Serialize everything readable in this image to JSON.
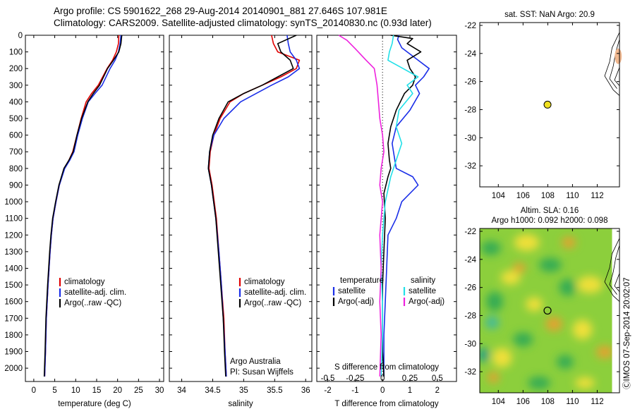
{
  "header": {
    "line1": "Argo profile: CS 5901622_268 29-Aug-2014 20140901_881 27.646S 107.981E",
    "line2": "Climatology: CARS2009. Satellite-adjusted climatology: synTS_20140830.nc (0.93d later)"
  },
  "side_text": "ⒸIMOS 07-Sep-2014 20:02:07",
  "colors": {
    "climatology": "#e00000",
    "satellite": "#1a2ee8",
    "argo": "#000000",
    "sat_salinity": "#22e0e8",
    "argo_salinity": "#ee22dd",
    "float_marker": "#f0e020"
  },
  "chart_data": [
    {
      "id": "temperature",
      "type": "line",
      "xlabel": "temperature (deg C)",
      "xlim": [
        -2,
        31
      ],
      "xticks": [
        0,
        5,
        10,
        15,
        20,
        25,
        30
      ],
      "ylim": [
        2080,
        0
      ],
      "yticks": [
        0,
        100,
        200,
        300,
        400,
        500,
        600,
        700,
        800,
        900,
        1000,
        1100,
        1200,
        1300,
        1400,
        1500,
        1600,
        1700,
        1800,
        1900,
        2000
      ],
      "legend": [
        "climatology",
        "satellite-adj. clim.",
        "Argo(..raw -QC)"
      ],
      "series": [
        {
          "name": "climatology",
          "color": "#e00000",
          "x": [
            20.3,
            20.2,
            19.7,
            18.8,
            17.5,
            15.4,
            13.8,
            12.5,
            11.3,
            10.3,
            9.3,
            8.4,
            7.3,
            6.1,
            5.3,
            4.6,
            4.2,
            3.9,
            3.4,
            3.0,
            2.8,
            2.6
          ],
          "y": [
            0,
            50,
            100,
            150,
            200,
            300,
            350,
            400,
            500,
            600,
            700,
            750,
            800,
            900,
            1000,
            1100,
            1200,
            1300,
            1500,
            1700,
            1900,
            2050
          ]
        },
        {
          "name": "satellite-adj. clim.",
          "color": "#1a2ee8",
          "x": [
            20.8,
            20.6,
            20.2,
            19.4,
            18.2,
            16.3,
            14.6,
            13.0,
            11.6,
            10.5,
            9.6,
            8.6,
            7.4,
            6.1,
            5.3,
            4.6,
            4.2,
            3.9,
            3.4,
            3.0,
            2.8,
            2.6
          ],
          "y": [
            0,
            50,
            100,
            150,
            200,
            300,
            350,
            400,
            500,
            600,
            700,
            750,
            800,
            900,
            1000,
            1100,
            1200,
            1300,
            1500,
            1700,
            1900,
            2050
          ]
        },
        {
          "name": "Argo(..raw -QC)",
          "color": "#000000",
          "x": [
            21.0,
            20.8,
            20.3,
            19.0,
            17.6,
            15.7,
            14.2,
            12.9,
            11.4,
            10.3,
            9.4,
            8.4,
            7.2,
            6.0,
            5.2,
            4.5,
            4.1,
            3.8,
            3.3,
            2.9,
            2.7,
            2.5
          ],
          "y": [
            0,
            50,
            100,
            150,
            200,
            300,
            350,
            400,
            500,
            600,
            700,
            750,
            800,
            900,
            1000,
            1100,
            1200,
            1300,
            1500,
            1700,
            1900,
            2050
          ]
        }
      ]
    },
    {
      "id": "salinity",
      "type": "line",
      "xlabel": "salinity",
      "xlim": [
        33.8,
        36.1
      ],
      "xticks": [
        34,
        34.5,
        35,
        35.5,
        36
      ],
      "ylim": [
        2080,
        0
      ],
      "legend": [
        "climatology",
        "satellite-adj. clim.",
        "Argo(..raw -QC)"
      ],
      "annotation": [
        "Argo Australia",
        "PI: Susan Wijffels"
      ],
      "series": [
        {
          "name": "climatology",
          "color": "#e00000",
          "x": [
            35.45,
            35.48,
            35.55,
            35.9,
            35.85,
            35.6,
            35.3,
            35.0,
            34.78,
            34.62,
            34.52,
            34.46,
            34.44,
            34.49,
            34.56,
            34.6,
            34.64,
            34.68,
            34.7,
            34.72
          ],
          "y": [
            0,
            50,
            100,
            150,
            200,
            250,
            300,
            350,
            400,
            500,
            600,
            700,
            800,
            900,
            1100,
            1300,
            1500,
            1700,
            1900,
            2050
          ]
        },
        {
          "name": "satellite-adj. clim.",
          "color": "#1a2ee8",
          "x": [
            35.7,
            35.72,
            35.75,
            35.85,
            35.9,
            35.72,
            35.45,
            35.2,
            34.95,
            34.68,
            34.52,
            34.45,
            34.43,
            34.48,
            34.55,
            34.6,
            34.64,
            34.67,
            34.7,
            34.72
          ],
          "y": [
            0,
            50,
            100,
            150,
            200,
            250,
            300,
            350,
            400,
            500,
            600,
            700,
            800,
            900,
            1100,
            1300,
            1500,
            1700,
            1900,
            2050
          ]
        },
        {
          "name": "Argo(..raw -QC)",
          "color": "#000000",
          "x": [
            35.85,
            35.55,
            35.6,
            35.75,
            35.8,
            35.55,
            35.3,
            35.0,
            34.75,
            34.6,
            34.5,
            34.45,
            34.43,
            34.48,
            34.55,
            34.59,
            34.63,
            34.67,
            34.69,
            34.71
          ],
          "y": [
            0,
            50,
            100,
            150,
            200,
            250,
            300,
            350,
            400,
            500,
            600,
            700,
            800,
            900,
            1100,
            1300,
            1500,
            1700,
            1900,
            2050
          ]
        }
      ]
    },
    {
      "id": "difference",
      "type": "line",
      "xlabel": "T difference from climatology",
      "xticks": [
        -2,
        -1,
        0,
        1,
        2
      ],
      "xlim": [
        -2.4,
        2.7
      ],
      "top_xlabel": "S difference from climatology",
      "top_xticks": [
        "-0.5",
        "-0.25",
        "0",
        "0.25",
        "0.5"
      ],
      "ylim": [
        2080,
        0
      ],
      "legend_temperature": [
        "temperature",
        "satellite",
        "Argo(-adj)"
      ],
      "legend_salinity": [
        "salinity",
        "satellite",
        "Argo(-adj)"
      ],
      "series": [
        {
          "name": "T satellite",
          "color": "#1a2ee8",
          "x": [
            0.6,
            0.55,
            0.7,
            1.3,
            1.7,
            1.5,
            1.2,
            1.35,
            1.0,
            0.5,
            0.35,
            0.45,
            0.5,
            1.1,
            1.3,
            0.7,
            0.5,
            0.2,
            0.15,
            0.1,
            0.05,
            0.05
          ],
          "y": [
            0,
            25,
            75,
            150,
            200,
            250,
            300,
            350,
            450,
            550,
            650,
            750,
            800,
            850,
            900,
            1000,
            1100,
            1200,
            1400,
            1600,
            1800,
            2050
          ]
        },
        {
          "name": "T Argo(-adj)",
          "color": "#000000",
          "x": [
            0.3,
            1.1,
            0.9,
            1.4,
            0.9,
            1.0,
            1.2,
            1.1,
            0.8,
            0.5,
            0.3,
            0.2,
            0.25,
            0.3,
            0.2,
            0.05,
            0.1,
            0.05,
            0.0,
            0.0,
            0.0,
            0.05
          ],
          "y": [
            0,
            20,
            50,
            100,
            150,
            200,
            250,
            300,
            350,
            450,
            550,
            650,
            750,
            800,
            850,
            950,
            1100,
            1300,
            1500,
            1700,
            1900,
            2050
          ]
        },
        {
          "name": "S satellite",
          "color": "#22e0e8",
          "x": [
            0.4,
            0.35,
            0.25,
            0.2,
            0.75,
            1.3,
            0.9,
            1.1,
            0.6,
            0.5,
            0.7,
            0.5,
            0.3,
            0.1,
            0.0,
            -0.05,
            0.0,
            0.0,
            -0.05
          ],
          "y": [
            0,
            50,
            100,
            150,
            200,
            250,
            300,
            350,
            450,
            550,
            650,
            750,
            850,
            1000,
            1200,
            1400,
            1600,
            1800,
            2050
          ]
        },
        {
          "name": "S Argo(-adj)",
          "color": "#ee22dd",
          "x": [
            -1.6,
            -1.3,
            -1.0,
            -0.6,
            -0.3,
            -0.2,
            -0.15,
            -0.1,
            0.0,
            0.05,
            -0.05,
            -0.1,
            0.0,
            -0.1,
            -0.05,
            -0.1,
            -0.05,
            -0.1
          ],
          "y": [
            0,
            30,
            80,
            150,
            200,
            300,
            400,
            500,
            600,
            700,
            800,
            900,
            1000,
            1200,
            1400,
            1600,
            1800,
            2050
          ]
        }
      ]
    },
    {
      "id": "sst_map",
      "type": "scatter",
      "title": "sat. SST: NaN Argo: 20.9",
      "xlim": [
        102.5,
        113.8
      ],
      "ylim": [
        -33.5,
        -21.8
      ],
      "xticks": [
        104,
        106,
        108,
        110,
        112
      ],
      "yticks": [
        -22,
        -24,
        -26,
        -28,
        -30,
        -32
      ],
      "point": {
        "lon": 107.981,
        "lat": -27.646
      }
    },
    {
      "id": "sla_map",
      "type": "heatmap",
      "title_line1": "Altim. SLA: 0.16",
      "title_line2": "Argo h1000: 0.092 h2000: 0.098",
      "xlim": [
        102.5,
        113.8
      ],
      "ylim": [
        -33.5,
        -21.8
      ],
      "xticks": [
        104,
        106,
        108,
        110,
        112
      ],
      "yticks": [
        -22,
        -24,
        -26,
        -28,
        -30,
        -32
      ],
      "point": {
        "lon": 107.981,
        "lat": -27.646
      }
    }
  ]
}
